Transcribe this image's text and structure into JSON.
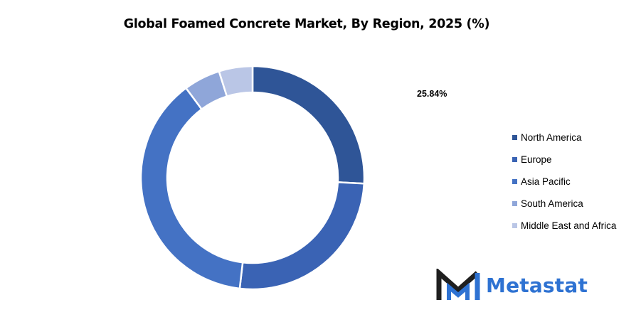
{
  "chart_data": {
    "type": "pie",
    "title": "Global Foamed Concrete Market, By Region, 2025 (%)",
    "donut": true,
    "categories": [
      "North America",
      "Europe",
      "Asia Pacific",
      "South America",
      "Middle East and Africa"
    ],
    "values": [
      25.84,
      26.0,
      38.0,
      5.3,
      4.86
    ],
    "colors": [
      "#2f5597",
      "#3a63b4",
      "#4472c4",
      "#8fa6d9",
      "#bac6e6"
    ],
    "data_labels": [
      "25.84%",
      "",
      "",
      "",
      ""
    ],
    "legend_position": "right"
  },
  "branding": {
    "name": "Metastat",
    "logo_icon": "metastat-m-logo-icon",
    "name_color": "#2e72d2"
  }
}
